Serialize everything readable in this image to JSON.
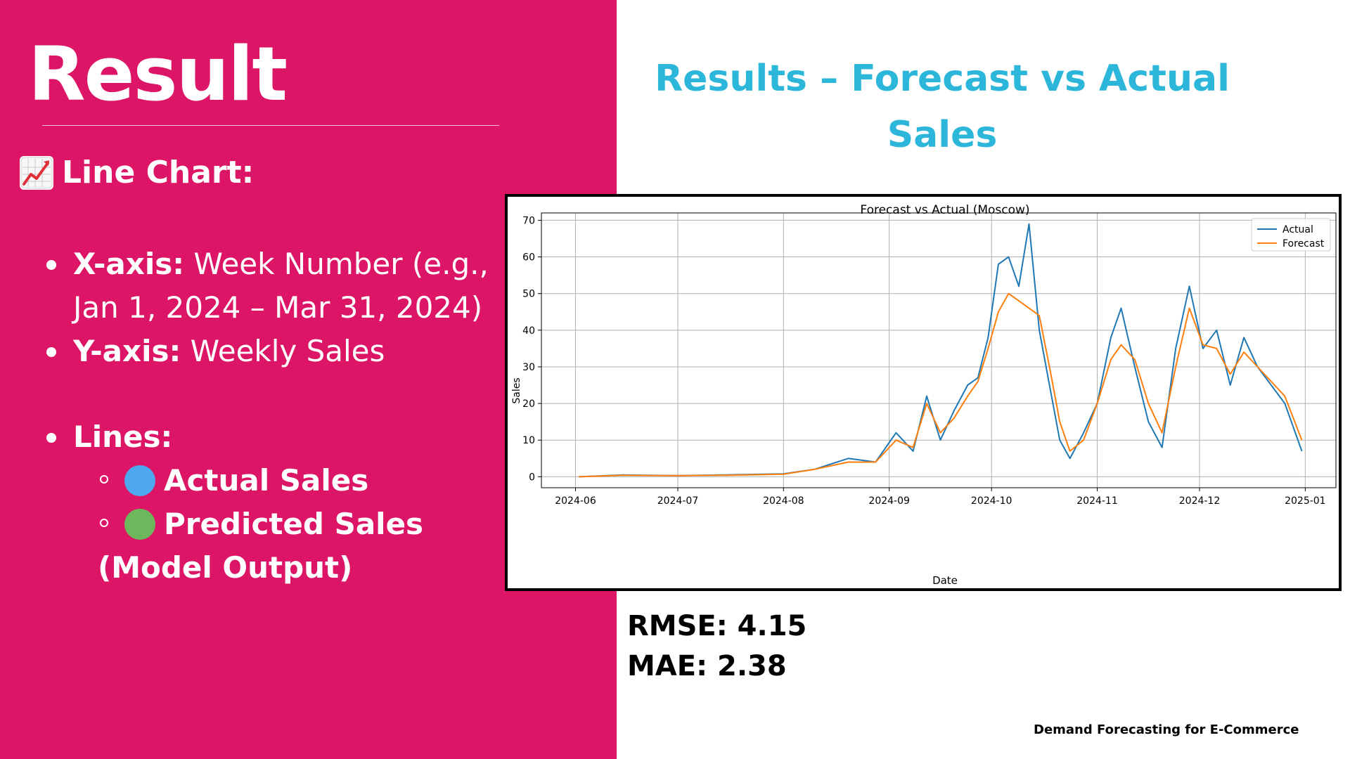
{
  "slide": {
    "title": "Result",
    "section_heading": "Line Chart:",
    "section_icon": "chart-increasing-emoji-icon",
    "bullets": {
      "x_axis_label": "X-axis:",
      "x_axis_text_1": "Week Number (e.g.,",
      "x_axis_text_2": "Jan 1, 2024 – Mar 31, 2024)",
      "y_axis_label": "Y-axis:",
      "y_axis_text": "Weekly Sales",
      "lines_label": "Lines:",
      "actual_label": "Actual Sales",
      "predicted_label_1": "Predicted Sales",
      "predicted_label_2": "(Model Output)"
    },
    "right_heading_line1": "Results – Forecast vs Actual",
    "right_heading_line2": "Sales",
    "rmse": "RMSE: 4.15",
    "mae": "MAE: 2.38",
    "footer": "Demand Forecasting for E-Commerce"
  },
  "colors": {
    "panel": "#dc1566",
    "heading_accent": "#2bb6da",
    "actual_swatch": "#4da8f0",
    "predicted_swatch": "#6db85c",
    "actual_line": "#1f77b4",
    "forecast_line": "#ff7f0e"
  },
  "chart_data": {
    "type": "line",
    "title": "Forecast vs Actual (Moscow)",
    "xlabel": "Date",
    "ylabel": "Sales",
    "ylim": [
      -3,
      72
    ],
    "yticks": [
      0,
      10,
      20,
      30,
      40,
      50,
      60,
      70
    ],
    "xticks": [
      "2024-06",
      "2024-07",
      "2024-08",
      "2024-09",
      "2024-10",
      "2024-11",
      "2024-12",
      "2025-01"
    ],
    "xlim": [
      "2024-05-22",
      "2025-01-10"
    ],
    "grid": true,
    "legend": "top-right",
    "series": [
      {
        "name": "Actual",
        "color": "#1f77b4",
        "x": [
          "2024-06-02",
          "2024-06-15",
          "2024-07-01",
          "2024-07-15",
          "2024-08-01",
          "2024-08-10",
          "2024-08-20",
          "2024-08-28",
          "2024-09-03",
          "2024-09-08",
          "2024-09-12",
          "2024-09-16",
          "2024-09-20",
          "2024-09-24",
          "2024-09-27",
          "2024-09-30",
          "2024-10-03",
          "2024-10-06",
          "2024-10-09",
          "2024-10-12",
          "2024-10-15",
          "2024-10-18",
          "2024-10-21",
          "2024-10-24",
          "2024-10-28",
          "2024-11-01",
          "2024-11-05",
          "2024-11-08",
          "2024-11-12",
          "2024-11-16",
          "2024-11-20",
          "2024-11-24",
          "2024-11-28",
          "2024-12-02",
          "2024-12-06",
          "2024-12-10",
          "2024-12-14",
          "2024-12-18",
          "2024-12-22",
          "2024-12-26",
          "2024-12-31"
        ],
        "values": [
          0,
          0.5,
          0.3,
          0.5,
          0.8,
          2,
          5,
          4,
          12,
          7,
          22,
          10,
          18,
          25,
          27,
          38,
          58,
          60,
          52,
          69,
          40,
          25,
          10,
          5,
          12,
          20,
          38,
          46,
          30,
          15,
          8,
          35,
          52,
          35,
          40,
          25,
          38,
          30,
          25,
          20,
          7
        ]
      },
      {
        "name": "Forecast",
        "color": "#ff7f0e",
        "x": [
          "2024-06-02",
          "2024-06-15",
          "2024-07-01",
          "2024-07-15",
          "2024-08-01",
          "2024-08-10",
          "2024-08-20",
          "2024-08-28",
          "2024-09-03",
          "2024-09-08",
          "2024-09-12",
          "2024-09-16",
          "2024-09-20",
          "2024-09-24",
          "2024-09-27",
          "2024-09-30",
          "2024-10-03",
          "2024-10-06",
          "2024-10-09",
          "2024-10-12",
          "2024-10-15",
          "2024-10-18",
          "2024-10-21",
          "2024-10-24",
          "2024-10-28",
          "2024-11-01",
          "2024-11-05",
          "2024-11-08",
          "2024-11-12",
          "2024-11-16",
          "2024-11-20",
          "2024-11-24",
          "2024-11-28",
          "2024-12-02",
          "2024-12-06",
          "2024-12-10",
          "2024-12-14",
          "2024-12-18",
          "2024-12-22",
          "2024-12-26",
          "2024-12-31"
        ],
        "values": [
          0,
          0.4,
          0.3,
          0.4,
          0.7,
          2,
          4,
          4,
          10,
          8,
          20,
          12,
          16,
          22,
          26,
          35,
          45,
          50,
          48,
          46,
          44,
          30,
          15,
          7,
          10,
          20,
          32,
          36,
          32,
          20,
          12,
          30,
          46,
          36,
          35,
          28,
          34,
          30,
          26,
          22,
          10
        ]
      }
    ]
  }
}
